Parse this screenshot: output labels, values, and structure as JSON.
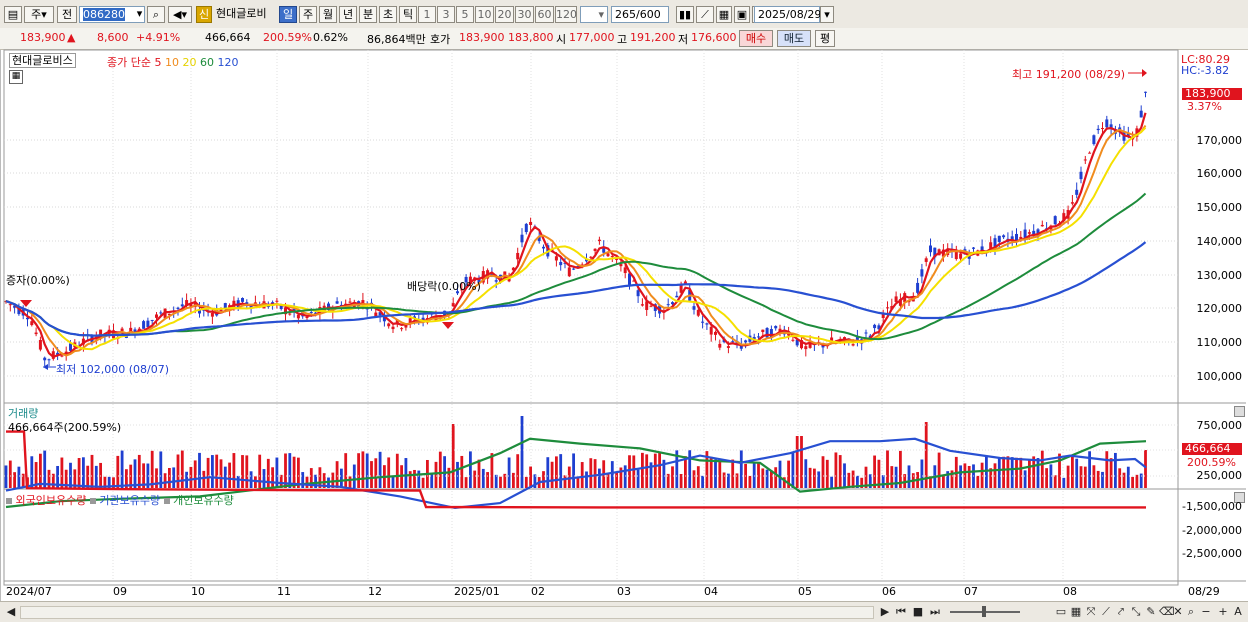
{
  "toolbar": {
    "period_mode": "주",
    "prev_label": "전",
    "stock_code": "086280",
    "shin_badge": "신",
    "stock_name": "현대글로비",
    "period_buttons": [
      "일",
      "주",
      "월",
      "년",
      "분",
      "초",
      "틱"
    ],
    "active_period": "일",
    "number_buttons": [
      "1",
      "3",
      "5",
      "10",
      "20",
      "30",
      "60",
      "120"
    ],
    "count_value": "265",
    "count_total": "/600",
    "date_value": "2025/08/29"
  },
  "quote": {
    "price": "183,900",
    "change_arrow": "▲",
    "change": "8,600",
    "change_pct": "+4.91%",
    "volume": "466,664",
    "volume_ratio": "200.59%",
    "turnover": "0.62%",
    "amount": "86,864백만",
    "bid_label": "호가",
    "ask": "183,900",
    "bid": "183,800",
    "open_label": "시",
    "open": "177,000",
    "high_label": "고",
    "high": "191,200",
    "low_label": "저",
    "low": "176,600",
    "buy_label": "매수",
    "sell_label": "매도",
    "avg_label": "평"
  },
  "price_panel": {
    "stock_legend": "현대글로비스",
    "ma_legend_prefix": "종가 단순",
    "ma_periods": [
      {
        "label": "5",
        "color": "#e0141e"
      },
      {
        "label": "10",
        "color": "#f08c1e"
      },
      {
        "label": "20",
        "color": "#e6d200"
      },
      {
        "label": "60",
        "color": "#1e8c3c"
      },
      {
        "label": "120",
        "color": "#2850d2"
      }
    ],
    "lc": "LC:80.29",
    "hc": "HC:-3.82",
    "high_annotation": "최고 191,200 (08/29)",
    "low_annotation": "최저 102,000 (08/07)",
    "event_capital": "증자(0.00%)",
    "event_dividend": "배당락(0.00%)",
    "current_price": "183,900",
    "current_pct": "3.37%",
    "y_ticks": [
      "170,000",
      "160,000",
      "150,000",
      "140,000",
      "130,000",
      "120,000",
      "110,000",
      "100,000"
    ]
  },
  "volume_panel": {
    "title": "거래량",
    "value_text": "466,664주(200.59%)",
    "y_ticks": [
      "750,000",
      "500,000",
      "250,000"
    ],
    "current_value": "466,664",
    "current_pct": "200.59%"
  },
  "holding_panel": {
    "legends": [
      {
        "label": "외국인보유수량",
        "color": "#e0141e"
      },
      {
        "label": "기관보유수량",
        "color": "#2850d2"
      },
      {
        "label": "개인보유수량",
        "color": "#1e8c3c"
      }
    ],
    "y_ticks": [
      "-1,500,000",
      "-2,000,000",
      "-2,500,000"
    ]
  },
  "x_axis": [
    "2024/07",
    "09",
    "10",
    "11",
    "12",
    "2025/01",
    "02",
    "03",
    "04",
    "05",
    "06",
    "07",
    "08",
    "08/29"
  ],
  "colors": {
    "up": "#e0141e",
    "down": "#1f3fd0",
    "ma5": "#e0141e",
    "ma10": "#f08c1e",
    "ma20": "#f5e000",
    "ma60": "#1e8c3c",
    "ma120": "#2850d2"
  }
}
